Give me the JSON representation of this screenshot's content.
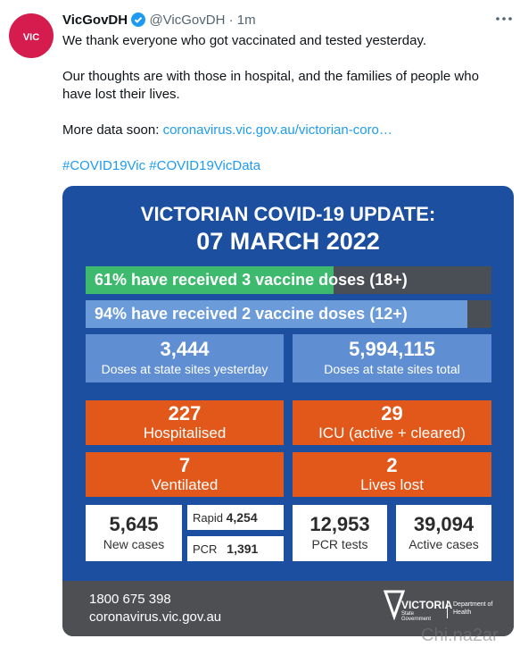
{
  "tweet": {
    "author": {
      "name": "VicGovDH",
      "handle": "@VicGovDH",
      "time": "1m"
    },
    "avatar_text": "VIC",
    "paragraphs": [
      "We thank everyone who got vaccinated and tested yesterday.",
      "Our thoughts are with those in hospital, and the families of people who have lost their lives."
    ],
    "more": {
      "text": "More data soon:",
      "link": "coronavirus.vic.gov.au/victorian-coro…"
    },
    "hashtags": [
      "#COVID19Vic",
      "#COVID19VicData"
    ],
    "infographic": {
      "title": "VICTORIAN COVID-19 UPDATE:",
      "date": "07 MARCH 2022",
      "progress": [
        {
          "value": 61,
          "label": "61% have received 3 vaccine doses (18+)"
        },
        {
          "value": 94,
          "label": "94% have received 2 vaccine doses (12+)"
        }
      ],
      "doses": [
        {
          "number": "3,444",
          "label": "Doses at state sites yesterday"
        },
        {
          "number": "5,994,115",
          "label": "Doses at state sites total"
        }
      ],
      "hospital": [
        {
          "number": "227",
          "label": "Hospitalised"
        },
        {
          "number": "29",
          "label": "ICU (active + cleared)"
        },
        {
          "number": "7",
          "label": "Ventilated"
        },
        {
          "number": "2",
          "label": "Lives lost"
        }
      ],
      "cases": {
        "number": "5,645",
        "label": "New cases"
      },
      "tests": [
        {
          "label": "Rapid",
          "number": "4,254"
        },
        {
          "label": "PCR",
          "number": "1,391"
        }
      ],
      "totals": [
        {
          "number": "12,953",
          "label": "PCR tests"
        },
        {
          "number": "39,094",
          "label": "Active cases"
        }
      ],
      "footer": {
        "phone": "1800 675 398",
        "site": "coronavirus.vic.gov.au",
        "logo": "VICTORIA",
        "logo_sub": "State Government",
        "department": "Department of Health"
      }
    },
    "watermark": "Chi.na2ar"
  }
}
